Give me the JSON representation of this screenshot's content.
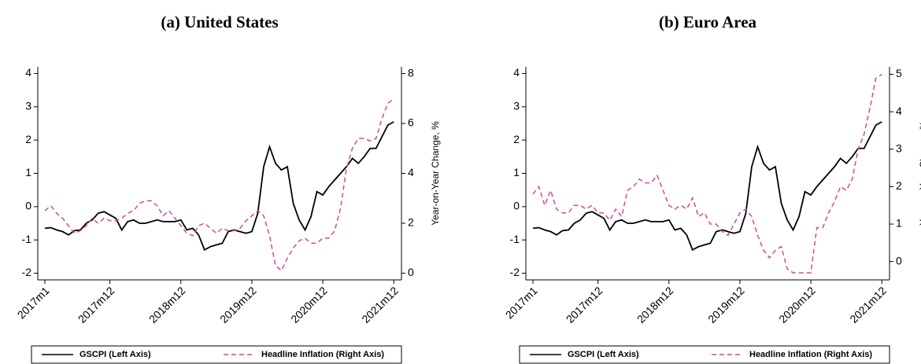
{
  "chart_data": [
    {
      "type": "line",
      "title": "(a) United States",
      "y2label": "Year-on-Year Change, %",
      "x": [
        1,
        2,
        3,
        4,
        5,
        6,
        7,
        8,
        9,
        10,
        11,
        12,
        13,
        14,
        15,
        16,
        17,
        18,
        19,
        20,
        21,
        22,
        23,
        24,
        25,
        26,
        27,
        28,
        29,
        30,
        31,
        32,
        33,
        34,
        35,
        36,
        37,
        38,
        39,
        40,
        41,
        42,
        43,
        44,
        45,
        46,
        47,
        48,
        49,
        50,
        51,
        52,
        53,
        54,
        55,
        56,
        57,
        58,
        59,
        60
      ],
      "xlim": [
        -0.2,
        61.3
      ],
      "xticks": [
        {
          "value": 1,
          "label": "2017m1"
        },
        {
          "value": 12,
          "label": "2017m12"
        },
        {
          "value": 24,
          "label": "2018m12"
        },
        {
          "value": 36,
          "label": "2019m12"
        },
        {
          "value": 48,
          "label": "2020m12"
        },
        {
          "value": 60,
          "label": "2021m12"
        }
      ],
      "ylim": [
        -2.2,
        4.2
      ],
      "yticks": [
        -2,
        -1,
        0,
        1,
        2,
        3,
        4
      ],
      "y2lim": [
        -0.27,
        8.27
      ],
      "y2ticks": [
        0,
        2,
        4,
        6,
        8
      ],
      "legend": "bottom",
      "series": [
        {
          "name": "GSCPI (Left Axis)",
          "color": "#000000",
          "style": "solid",
          "values": [
            -0.65,
            -0.63,
            -0.7,
            -0.75,
            -0.85,
            -0.72,
            -0.7,
            -0.5,
            -0.4,
            -0.2,
            -0.15,
            -0.25,
            -0.35,
            -0.7,
            -0.45,
            -0.4,
            -0.5,
            -0.5,
            -0.45,
            -0.4,
            -0.45,
            -0.45,
            -0.45,
            -0.4,
            -0.7,
            -0.65,
            -0.85,
            -1.3,
            -1.2,
            -1.15,
            -1.1,
            -0.75,
            -0.7,
            -0.75,
            -0.8,
            -0.75,
            -0.2,
            1.2,
            1.8,
            1.3,
            1.1,
            1.2,
            0.1,
            -0.4,
            -0.7,
            -0.3,
            0.45,
            0.35,
            0.6,
            0.8,
            1.0,
            1.2,
            1.45,
            1.3,
            1.5,
            1.75,
            1.75,
            2.1,
            2.45,
            2.55
          ]
        },
        {
          "name": "Headline Inflation (Right Axis)",
          "color": "#cc4c9c",
          "style": "dashed",
          "axis": "y2",
          "values": [
            2.5,
            2.7,
            2.4,
            2.2,
            1.9,
            1.6,
            1.7,
            1.9,
            2.2,
            2.0,
            2.2,
            2.1,
            2.1,
            2.2,
            2.4,
            2.5,
            2.8,
            2.9,
            2.9,
            2.7,
            2.3,
            2.5,
            2.2,
            1.9,
            1.6,
            1.5,
            1.9,
            2.0,
            1.8,
            1.6,
            1.8,
            1.7,
            1.7,
            1.8,
            2.1,
            2.3,
            2.5,
            2.3,
            1.5,
            0.3,
            0.1,
            0.6,
            1.0,
            1.3,
            1.4,
            1.2,
            1.2,
            1.4,
            1.4,
            1.7,
            2.6,
            4.2,
            5.0,
            5.4,
            5.4,
            5.3,
            5.4,
            6.2,
            6.8,
            7.0
          ]
        }
      ]
    },
    {
      "type": "line",
      "title": "(b) Euro Area",
      "y2label": "Year-on-Year Change, %",
      "x": [
        1,
        2,
        3,
        4,
        5,
        6,
        7,
        8,
        9,
        10,
        11,
        12,
        13,
        14,
        15,
        16,
        17,
        18,
        19,
        20,
        21,
        22,
        23,
        24,
        25,
        26,
        27,
        28,
        29,
        30,
        31,
        32,
        33,
        34,
        35,
        36,
        37,
        38,
        39,
        40,
        41,
        42,
        43,
        44,
        45,
        46,
        47,
        48,
        49,
        50,
        51,
        52,
        53,
        54,
        55,
        56,
        57,
        58,
        59,
        60
      ],
      "xlim": [
        -0.2,
        61.3
      ],
      "xticks": [
        {
          "value": 1,
          "label": "2017m1"
        },
        {
          "value": 12,
          "label": "2017m12"
        },
        {
          "value": 24,
          "label": "2018m12"
        },
        {
          "value": 36,
          "label": "2019m12"
        },
        {
          "value": 48,
          "label": "2020m12"
        },
        {
          "value": 60,
          "label": "2021m12"
        }
      ],
      "ylim": [
        -2.2,
        4.2
      ],
      "yticks": [
        -2,
        -1,
        0,
        1,
        2,
        3,
        4
      ],
      "y2lim": [
        -0.49,
        5.2
      ],
      "y2ticks": [
        0,
        1,
        2,
        3,
        4,
        5
      ],
      "legend": "bottom",
      "series": [
        {
          "name": "GSCPI (Left Axis)",
          "color": "#000000",
          "style": "solid",
          "values": [
            -0.65,
            -0.63,
            -0.7,
            -0.75,
            -0.85,
            -0.72,
            -0.7,
            -0.5,
            -0.4,
            -0.2,
            -0.15,
            -0.25,
            -0.35,
            -0.7,
            -0.45,
            -0.4,
            -0.5,
            -0.5,
            -0.45,
            -0.4,
            -0.45,
            -0.45,
            -0.45,
            -0.4,
            -0.7,
            -0.65,
            -0.85,
            -1.3,
            -1.2,
            -1.15,
            -1.1,
            -0.75,
            -0.7,
            -0.75,
            -0.8,
            -0.75,
            -0.2,
            1.2,
            1.8,
            1.3,
            1.1,
            1.2,
            0.1,
            -0.4,
            -0.7,
            -0.3,
            0.45,
            0.35,
            0.6,
            0.8,
            1.0,
            1.2,
            1.45,
            1.3,
            1.5,
            1.75,
            1.75,
            2.1,
            2.45,
            2.55
          ]
        },
        {
          "name": "Headline Inflation (Right Axis)",
          "color": "#cc4c9c",
          "style": "dashed",
          "axis": "y2",
          "values": [
            1.8,
            2.0,
            1.5,
            1.9,
            1.4,
            1.3,
            1.3,
            1.5,
            1.5,
            1.4,
            1.5,
            1.3,
            1.3,
            1.1,
            1.4,
            1.2,
            1.9,
            2.0,
            2.2,
            2.1,
            2.1,
            2.3,
            1.9,
            1.5,
            1.4,
            1.5,
            1.4,
            1.7,
            1.2,
            1.3,
            1.0,
            1.0,
            0.8,
            0.7,
            1.0,
            1.3,
            1.4,
            1.2,
            0.7,
            0.3,
            0.1,
            0.3,
            0.4,
            -0.2,
            -0.3,
            -0.3,
            -0.3,
            -0.3,
            0.9,
            0.9,
            1.3,
            1.6,
            2.0,
            1.9,
            2.2,
            3.0,
            3.4,
            4.1,
            4.9,
            5.0
          ]
        }
      ]
    }
  ]
}
